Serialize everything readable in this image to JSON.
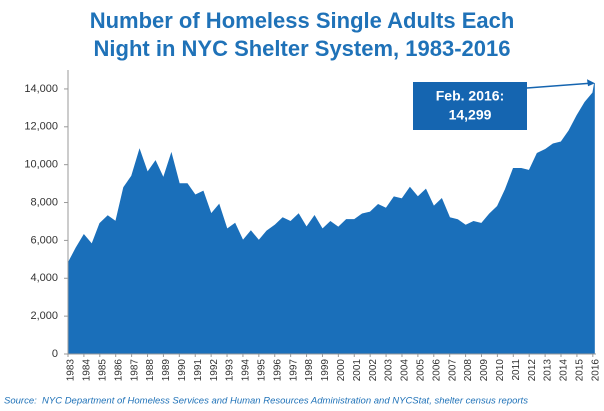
{
  "chart_data": {
    "type": "area",
    "title_lines": [
      "Number of Homeless Single Adults Each",
      "Night in NYC Shelter System, 1983-2016"
    ],
    "x": [
      1983.0,
      1983.5,
      1984.0,
      1984.5,
      1985.0,
      1985.5,
      1986.0,
      1986.5,
      1987.0,
      1987.5,
      1988.0,
      1988.5,
      1989.0,
      1989.5,
      1990.0,
      1990.5,
      1991.0,
      1991.5,
      1992.0,
      1992.5,
      1993.0,
      1993.5,
      1994.0,
      1994.5,
      1995.0,
      1995.5,
      1996.0,
      1996.5,
      1997.0,
      1997.5,
      1998.0,
      1998.5,
      1999.0,
      1999.5,
      2000.0,
      2000.5,
      2001.0,
      2001.5,
      2002.0,
      2002.5,
      2003.0,
      2003.5,
      2004.0,
      2004.5,
      2005.0,
      2005.5,
      2006.0,
      2006.5,
      2007.0,
      2007.5,
      2008.0,
      2008.5,
      2009.0,
      2009.5,
      2010.0,
      2010.5,
      2011.0,
      2011.5,
      2012.0,
      2012.5,
      2013.0,
      2013.5,
      2014.0,
      2014.5,
      2015.0,
      2015.5,
      2016.0,
      2016.1
    ],
    "values": [
      4800,
      5600,
      6300,
      5800,
      6900,
      7300,
      7000,
      8800,
      9400,
      10800,
      9600,
      10200,
      9300,
      10600,
      9000,
      9000,
      8400,
      8600,
      7400,
      7900,
      6600,
      6900,
      6000,
      6500,
      6000,
      6500,
      6800,
      7200,
      7000,
      7400,
      6700,
      7300,
      6600,
      7000,
      6700,
      7100,
      7100,
      7400,
      7500,
      7900,
      7700,
      8300,
      8200,
      8800,
      8300,
      8700,
      7800,
      8200,
      7200,
      7100,
      6800,
      7000,
      6900,
      7400,
      7800,
      8700,
      9800,
      9800,
      9700,
      10600,
      10800,
      11100,
      11200,
      11800,
      12600,
      13300,
      13800,
      14299
    ],
    "color": "#1a6fba",
    "xlim": [
      1983,
      2016.2
    ],
    "xticks": [
      1983,
      1984,
      1985,
      1986,
      1987,
      1988,
      1989,
      1990,
      1991,
      1992,
      1993,
      1994,
      1995,
      1996,
      1997,
      1998,
      1999,
      2000,
      2001,
      2002,
      2003,
      2004,
      2005,
      2006,
      2007,
      2008,
      2009,
      2010,
      2011,
      2012,
      2013,
      2014,
      2015,
      2016
    ],
    "ylim": [
      0,
      15000
    ],
    "yticks": [
      0,
      {
        "value": 2000,
        "label": "2,000"
      },
      {
        "value": 4000,
        "label": "4,000"
      },
      {
        "value": 6000,
        "label": "6,000"
      },
      {
        "value": 8000,
        "label": "8,000"
      },
      {
        "value": 10000,
        "label": "10,000"
      },
      {
        "value": 12000,
        "label": "12,000"
      },
      {
        "value": 14000,
        "label": "14,000"
      }
    ],
    "annotation": {
      "text": "Feb. 2016:",
      "value": 14299,
      "value_label": "14,299"
    },
    "source_label": "Source:",
    "source": "NYC Department of Homeless Services and Human Resources Administration and NYCStat, shelter census reports"
  }
}
